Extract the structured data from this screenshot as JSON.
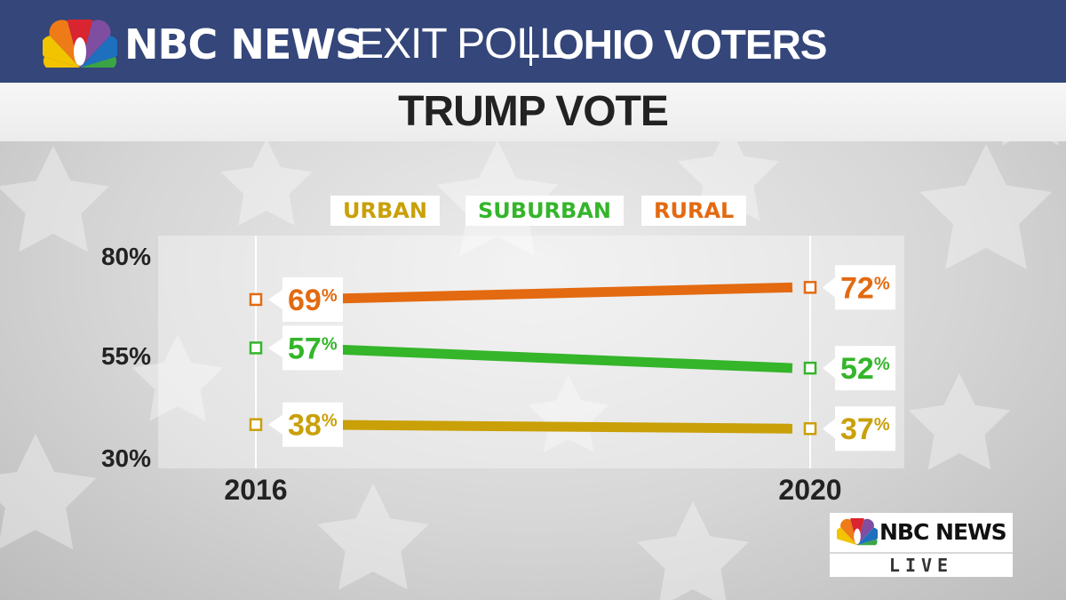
{
  "header": {
    "brand": "NBC NEWS",
    "subtitle": "EXIT POLL",
    "region": "OHIO VOTERS"
  },
  "colors": {
    "header_bg": "#34467a",
    "urban": "#c9a008",
    "suburban": "#34b52a",
    "rural": "#e36a10"
  },
  "logo": {
    "brand": "NBC NEWS",
    "live": "LIVE"
  },
  "chart_data": {
    "type": "line",
    "title": "TRUMP VOTE",
    "x": [
      "2016",
      "2020"
    ],
    "ylim": [
      30,
      80
    ],
    "yticks": [
      "80%",
      "55%",
      "30%"
    ],
    "yticks_values": [
      80,
      55,
      30
    ],
    "legend": [
      "URBAN",
      "SUBURBAN",
      "RURAL"
    ],
    "legend_position": "top",
    "series": [
      {
        "name": "URBAN",
        "values": [
          38,
          37
        ],
        "labels": [
          "38%",
          "37%"
        ],
        "color": "#c9a008"
      },
      {
        "name": "SUBURBAN",
        "values": [
          57,
          52
        ],
        "labels": [
          "57%",
          "52%"
        ],
        "color": "#34b52a"
      },
      {
        "name": "RURAL",
        "values": [
          69,
          72
        ],
        "labels": [
          "69%",
          "72%"
        ],
        "color": "#e36a10"
      }
    ]
  }
}
